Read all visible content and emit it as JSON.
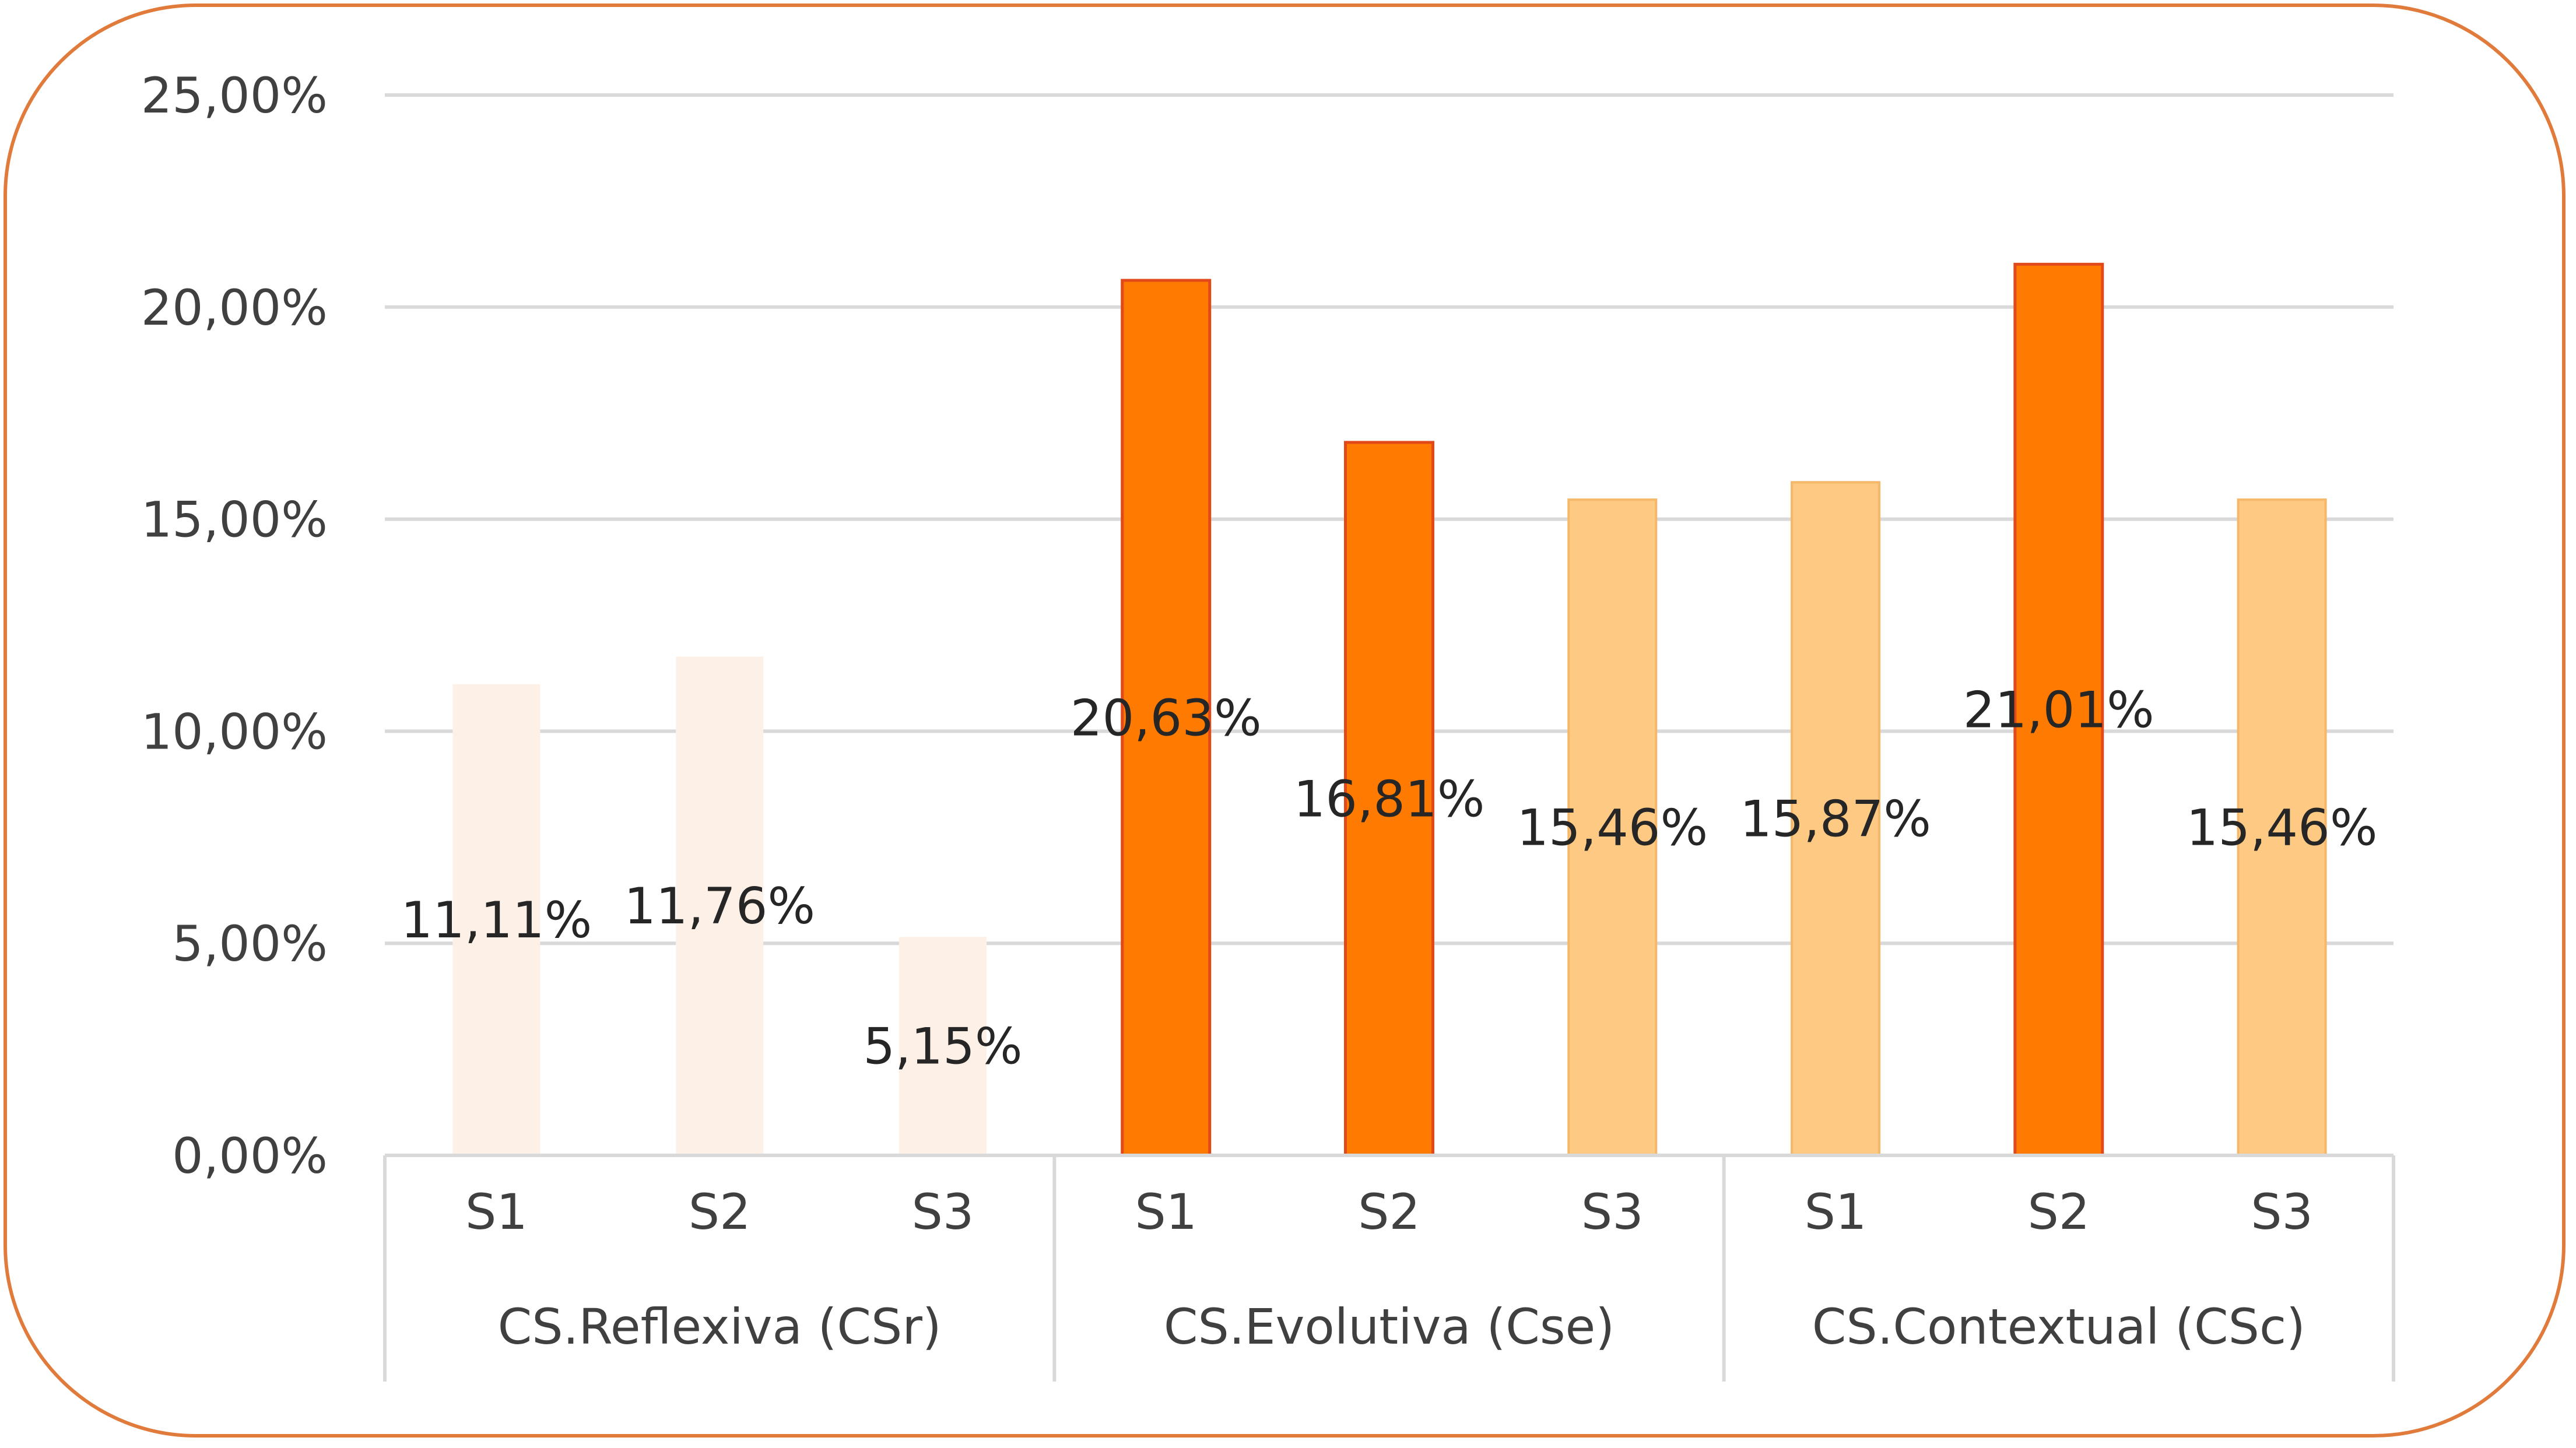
{
  "chart_data": {
    "type": "bar",
    "title": "",
    "xlabel": "",
    "ylabel": "",
    "ylim": [
      0,
      25
    ],
    "yticks": [
      {
        "value": 0,
        "label": "0,00%"
      },
      {
        "value": 5,
        "label": "5,00%"
      },
      {
        "value": 10,
        "label": "10,00%"
      },
      {
        "value": 15,
        "label": "15,00%"
      },
      {
        "value": 20,
        "label": "20,00%"
      },
      {
        "value": 25,
        "label": "25,00%"
      }
    ],
    "grid": true,
    "groups": [
      {
        "name": "CS.Reflexiva (CSr)",
        "bars": [
          {
            "category": "S1",
            "value": 11.11,
            "label": "11,11%",
            "color": "#fdf1e7"
          },
          {
            "category": "S2",
            "value": 11.76,
            "label": "11,76%",
            "color": "#fdf1e7"
          },
          {
            "category": "S3",
            "value": 5.15,
            "label": "5,15%",
            "color": "#fdf1e7"
          }
        ]
      },
      {
        "name": "CS.Evolutiva (Cse)",
        "bars": [
          {
            "category": "S1",
            "value": 20.63,
            "label": "20,63%",
            "color": "#ff7a00"
          },
          {
            "category": "S2",
            "value": 16.81,
            "label": "16,81%",
            "color": "#ff7a00"
          },
          {
            "category": "S3",
            "value": 15.46,
            "label": "15,46%",
            "color": "#fec983"
          }
        ]
      },
      {
        "name": "CS.Contextual (CSc)",
        "bars": [
          {
            "category": "S1",
            "value": 15.87,
            "label": "15,87%",
            "color": "#fec983"
          },
          {
            "category": "S2",
            "value": 21.01,
            "label": "21,01%",
            "color": "#ff7a00"
          },
          {
            "category": "S3",
            "value": 15.46,
            "label": "15,46%",
            "color": "#fec983"
          }
        ]
      }
    ],
    "colors": {
      "gridline": "#d9d9d9",
      "axis": "#d9d9d9",
      "frame": "#e07b3c",
      "dark_bar_outline": "#e2491a",
      "light_bar_outline": "#f5b76a"
    }
  }
}
